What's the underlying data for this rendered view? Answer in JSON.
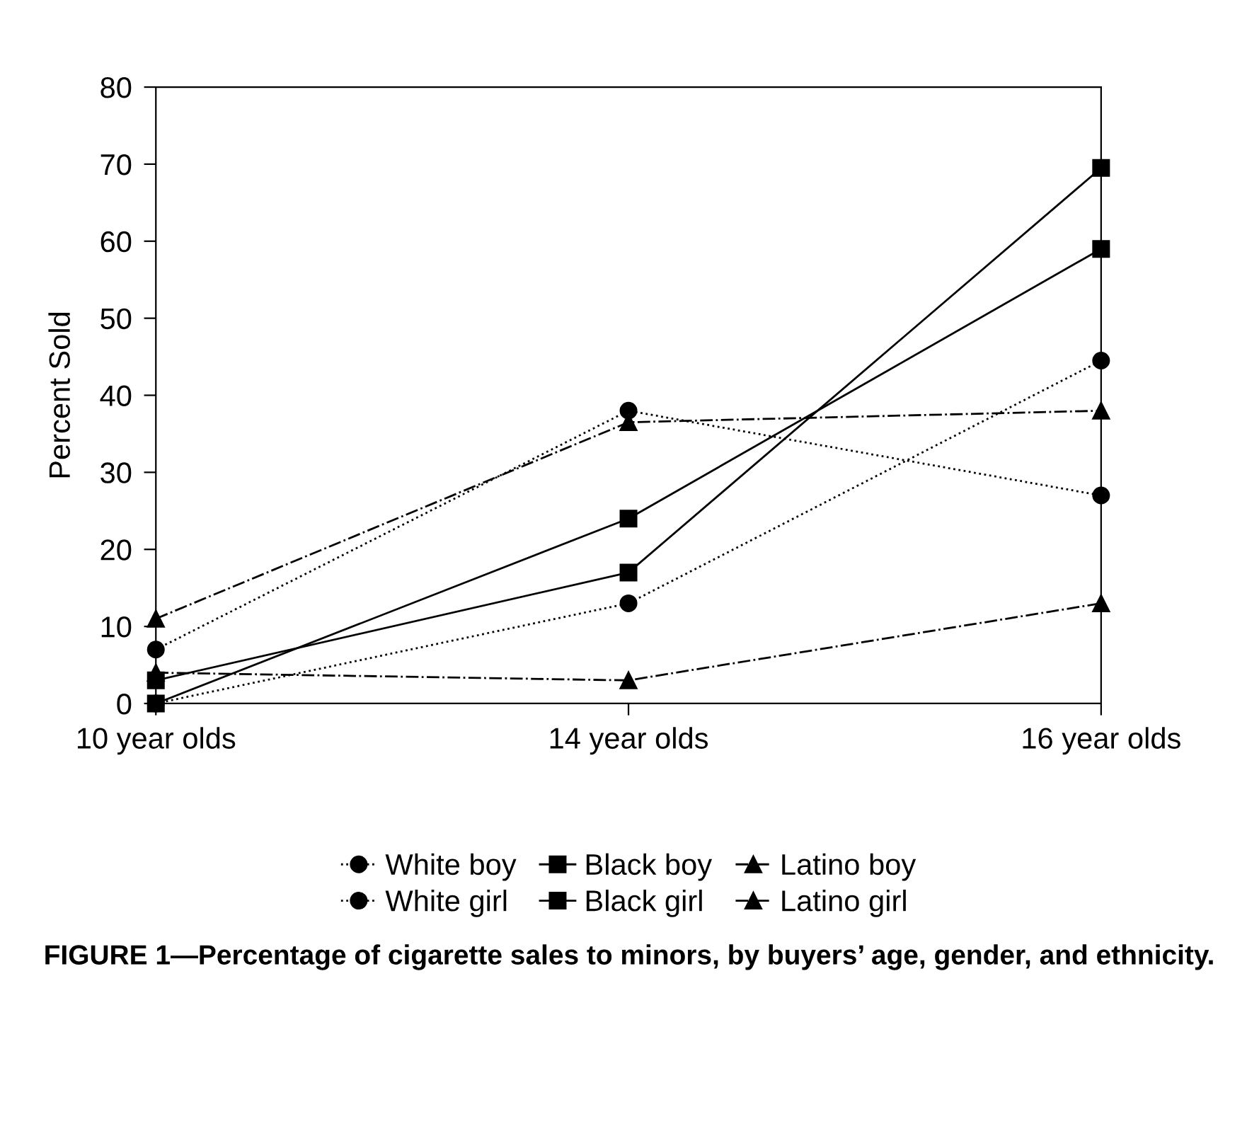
{
  "chart_data": {
    "type": "line",
    "ylabel": "Percent Sold",
    "categories": [
      "10 year olds",
      "14 year olds",
      "16 year olds"
    ],
    "series": [
      {
        "name": "White boy",
        "color": "#000000",
        "marker": "circle",
        "line_style": "dotted",
        "values": [
          0,
          13,
          44.5
        ]
      },
      {
        "name": "Black boy",
        "color": "#000000",
        "marker": "square",
        "line_style": "solid",
        "values": [
          3,
          17,
          69.5
        ]
      },
      {
        "name": "Latino boy",
        "color": "#000000",
        "marker": "triangle",
        "line_style": "dashed",
        "values": [
          4,
          3,
          13
        ]
      },
      {
        "name": "White girl",
        "color": "#000000",
        "marker": "circle",
        "line_style": "dotted",
        "values": [
          7,
          38,
          27
        ]
      },
      {
        "name": "Black girl",
        "color": "#000000",
        "marker": "square",
        "line_style": "solid",
        "values": [
          0,
          24,
          59
        ]
      },
      {
        "name": "Latino girl",
        "color": "#000000",
        "marker": "triangle",
        "line_style": "dashed",
        "values": [
          11,
          36.5,
          38
        ]
      }
    ],
    "ylim": [
      0,
      80
    ],
    "yticks": [
      0,
      10,
      20,
      30,
      40,
      50,
      60,
      70,
      80
    ],
    "grid": false,
    "legend": "bottom",
    "annotations": [
      "FIGURE 1—Percentage of cigarette sales to minors, by buyers’ age, gender, and ethnicity."
    ]
  }
}
